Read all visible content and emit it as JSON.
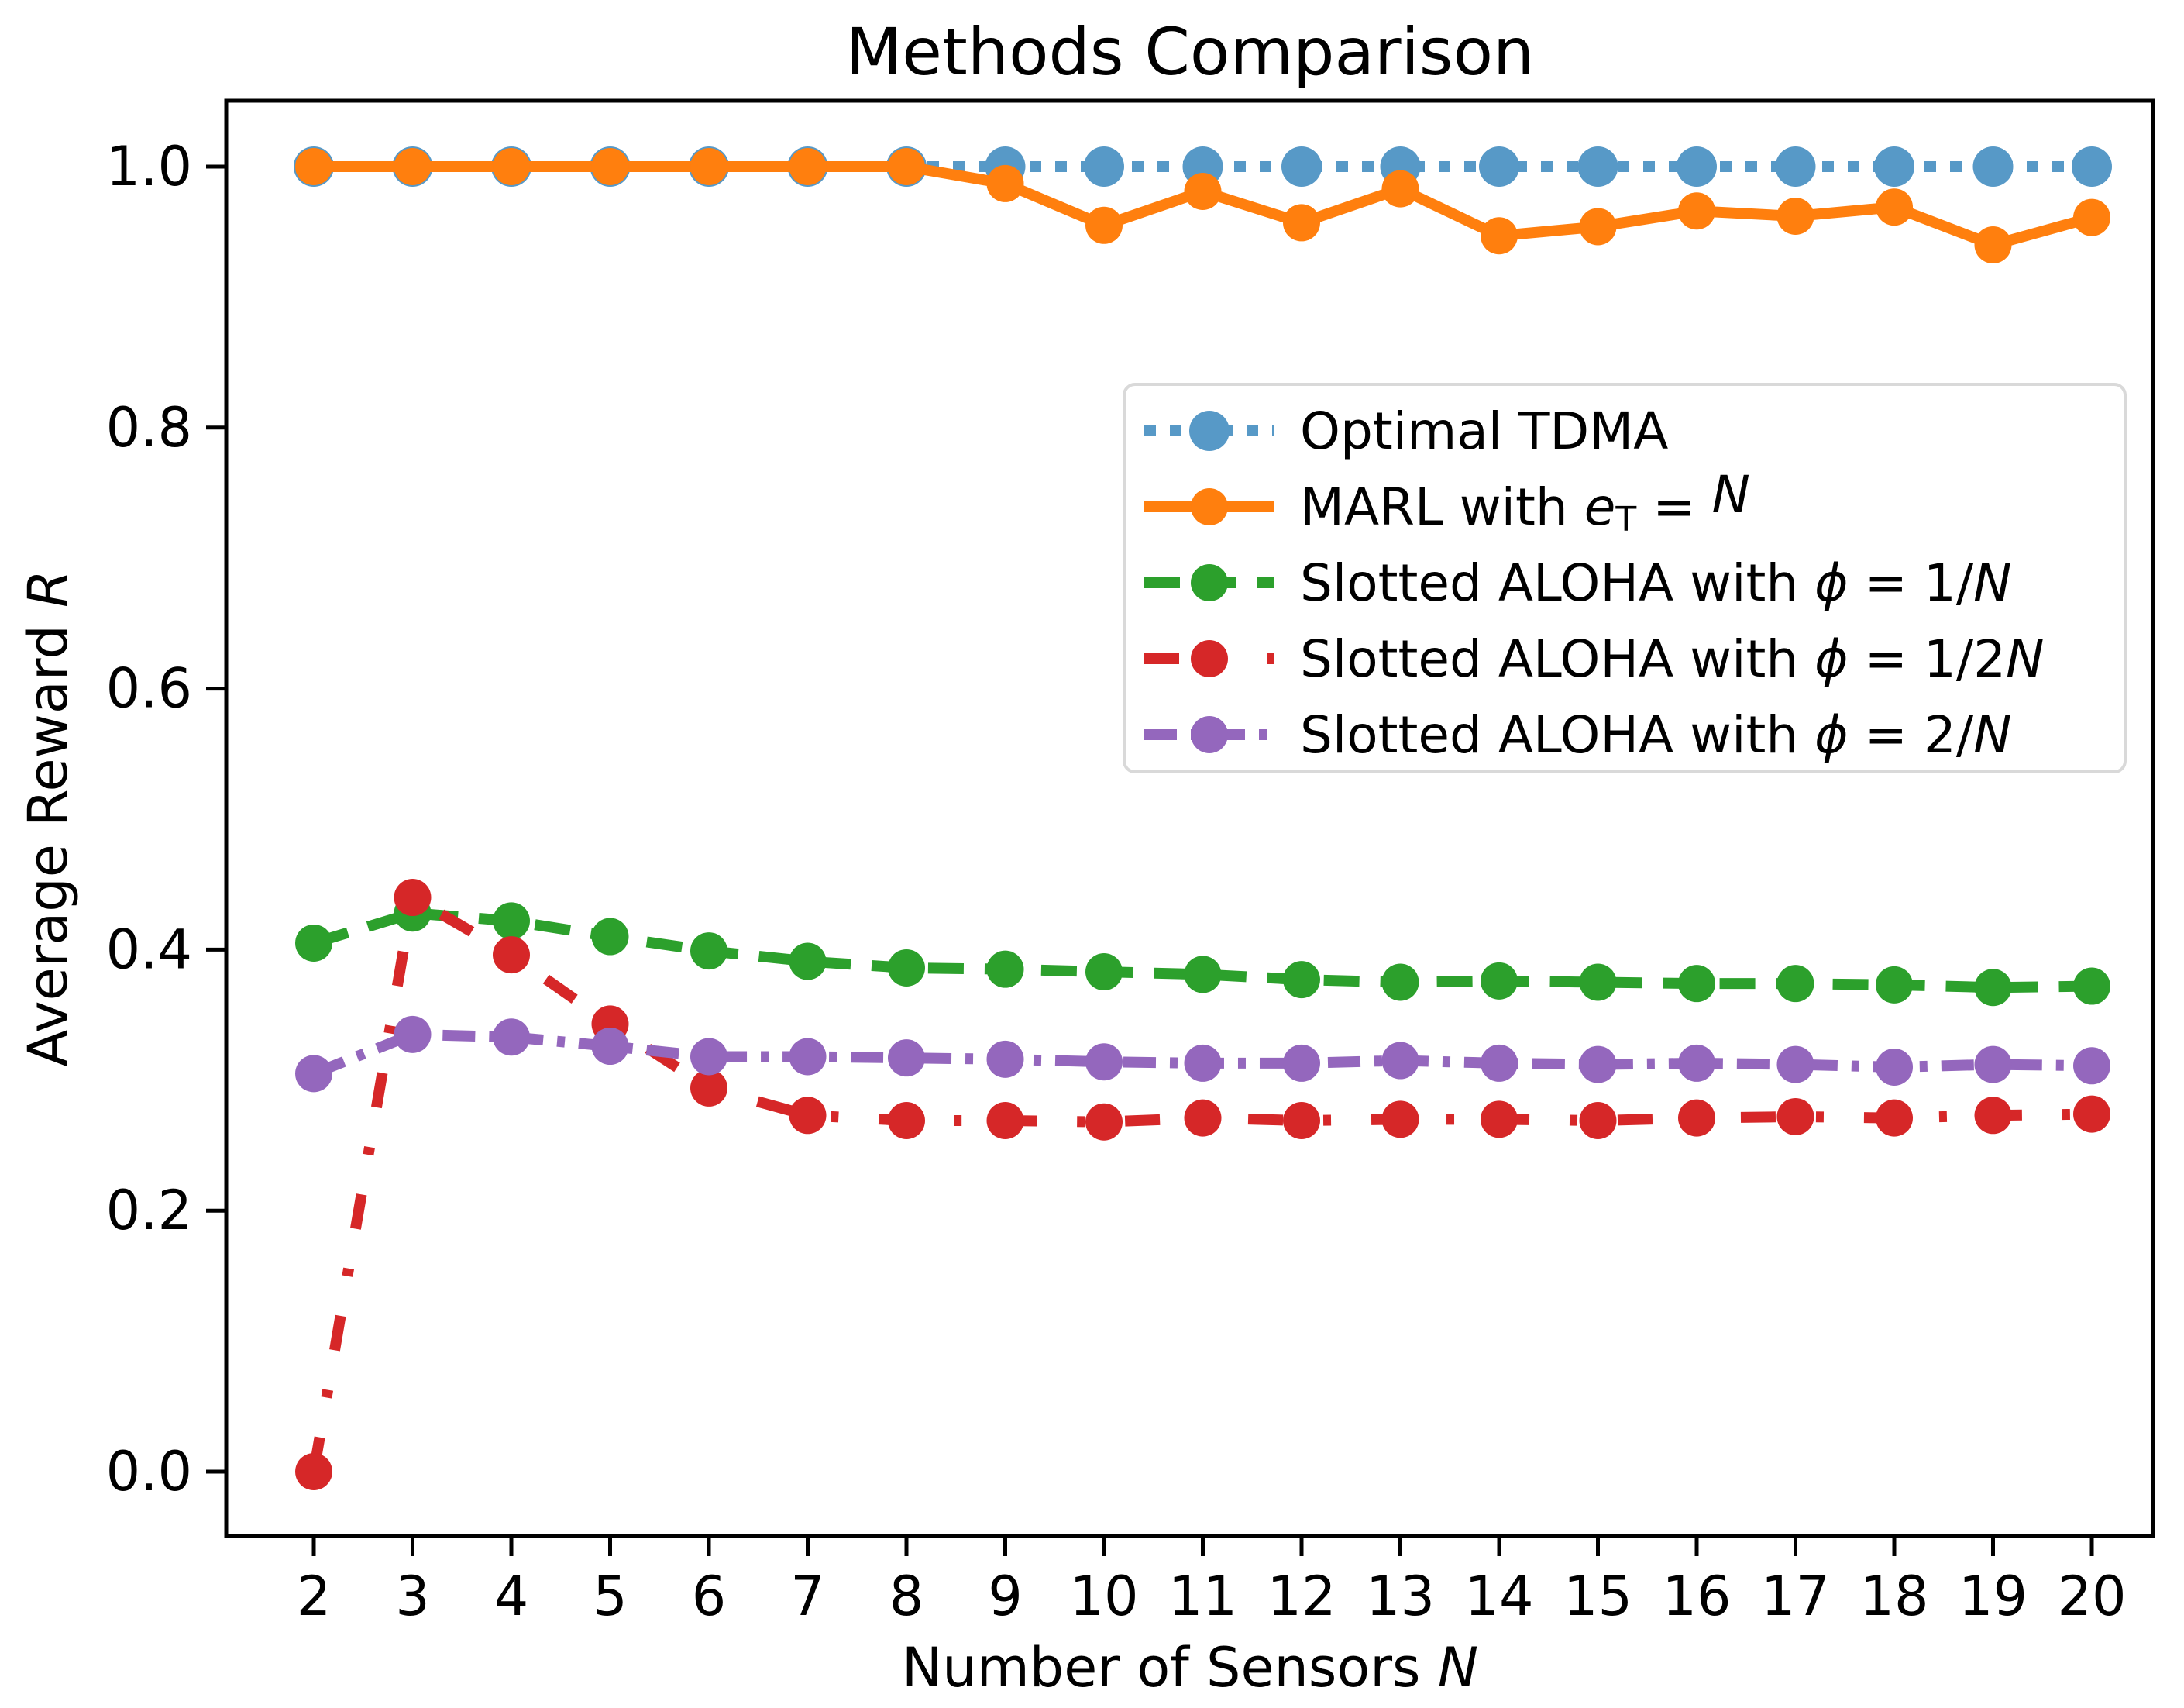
{
  "chart_data": {
    "type": "line",
    "title": "Methods Comparison",
    "xlabel_segments": [
      {
        "t": "Number of Sensors "
      },
      {
        "t": "N",
        "italic": true
      }
    ],
    "ylabel_segments": [
      {
        "t": "Average Reward "
      },
      {
        "t": "R",
        "italic": true
      }
    ],
    "x": [
      2,
      3,
      4,
      5,
      6,
      7,
      8,
      9,
      10,
      11,
      12,
      13,
      14,
      15,
      16,
      17,
      18,
      19,
      20
    ],
    "xtick_labels": [
      "2",
      "3",
      "4",
      "5",
      "6",
      "7",
      "8",
      "9",
      "10",
      "11",
      "12",
      "13",
      "14",
      "15",
      "16",
      "17",
      "18",
      "19",
      "20"
    ],
    "ytick_values": [
      0.0,
      0.2,
      0.4,
      0.6,
      0.8,
      1.0
    ],
    "ytick_labels": [
      "0.0",
      "0.2",
      "0.4",
      "0.6",
      "0.8",
      "1.0"
    ],
    "xlim": [
      1.11,
      20.62
    ],
    "ylim": [
      -0.049,
      1.064
    ],
    "grid": false,
    "legend_position": "upper right",
    "background_color": "#ffffff",
    "frame_color": "#000000",
    "series": [
      {
        "id": "optimal-tdma",
        "label_segments": [
          {
            "t": "Optimal TDMA"
          }
        ],
        "color": "#5799c7",
        "line_style": "dotted",
        "marker": "circle",
        "marker_radius": 26,
        "values": [
          1.0,
          1.0,
          1.0,
          1.0,
          1.0,
          1.0,
          1.0,
          1.0,
          1.0,
          1.0,
          1.0,
          1.0,
          1.0,
          1.0,
          1.0,
          1.0,
          1.0,
          1.0,
          1.0
        ]
      },
      {
        "id": "marl-et-n",
        "label_segments": [
          {
            "t": "MARL with "
          },
          {
            "t": "e",
            "italic": true
          },
          {
            "t": "T",
            "sub": true
          },
          {
            "t": " = "
          },
          {
            "t": "N",
            "italic": true
          }
        ],
        "color": "#ff7f0e",
        "line_style": "solid",
        "marker": "circle",
        "marker_radius": 24,
        "values": [
          1.0,
          1.0,
          1.0,
          1.0,
          1.0,
          1.0,
          1.0,
          0.987,
          0.955,
          0.981,
          0.957,
          0.983,
          0.947,
          0.954,
          0.966,
          0.962,
          0.969,
          0.94,
          0.961
        ]
      },
      {
        "id": "slotted-aloha-1-over-n",
        "label_segments": [
          {
            "t": "Slotted ALOHA with "
          },
          {
            "t": "ϕ",
            "italic": true
          },
          {
            "t": " = 1/"
          },
          {
            "t": "N",
            "italic": true
          }
        ],
        "color": "#2ca02c",
        "line_style": "dashed",
        "marker": "circle",
        "marker_radius": 24,
        "values": [
          0.405,
          0.428,
          0.422,
          0.41,
          0.399,
          0.391,
          0.386,
          0.385,
          0.383,
          0.381,
          0.377,
          0.375,
          0.376,
          0.375,
          0.374,
          0.374,
          0.373,
          0.371,
          0.372
        ]
      },
      {
        "id": "slotted-aloha-1-over-2n",
        "label_segments": [
          {
            "t": "Slotted ALOHA with "
          },
          {
            "t": "ϕ",
            "italic": true
          },
          {
            "t": " = 1/2"
          },
          {
            "t": "N",
            "italic": true
          }
        ],
        "color": "#d62728",
        "line_style": "dashdot-sparse",
        "marker": "circle",
        "marker_radius": 24,
        "values": [
          0.0,
          0.44,
          0.396,
          0.343,
          0.294,
          0.273,
          0.269,
          0.269,
          0.268,
          0.271,
          0.269,
          0.27,
          0.27,
          0.269,
          0.271,
          0.272,
          0.271,
          0.273,
          0.274
        ]
      },
      {
        "id": "slotted-aloha-2-over-n",
        "label_segments": [
          {
            "t": "Slotted ALOHA with "
          },
          {
            "t": "ϕ",
            "italic": true
          },
          {
            "t": " = 2/"
          },
          {
            "t": "N",
            "italic": true
          }
        ],
        "color": "#9467bd",
        "line_style": "dashdot",
        "marker": "circle",
        "marker_radius": 24,
        "values": [
          0.305,
          0.335,
          0.333,
          0.326,
          0.318,
          0.318,
          0.317,
          0.316,
          0.314,
          0.313,
          0.313,
          0.315,
          0.313,
          0.312,
          0.313,
          0.312,
          0.31,
          0.312,
          0.311
        ]
      }
    ]
  }
}
